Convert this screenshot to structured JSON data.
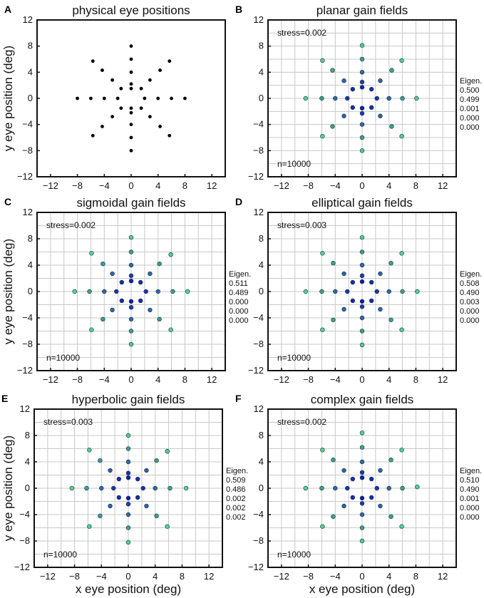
{
  "chart_data": [
    {
      "panel_label": "A",
      "type": "scatter",
      "title": "physical eye positions",
      "xlim": [
        -14,
        14
      ],
      "ylim": [
        -12,
        12
      ],
      "xticks": [
        -12,
        -8,
        -4,
        0,
        4,
        8,
        12
      ],
      "yticks": [
        -12,
        -8,
        -4,
        0,
        4,
        8,
        12
      ],
      "ylabel": "y eye position (deg)",
      "xlabel": "",
      "grid": false,
      "marker_color": "#000000",
      "points": [
        {
          "x": 0,
          "y": 8
        },
        {
          "x": 0,
          "y": 6
        },
        {
          "x": 0,
          "y": 4
        },
        {
          "x": 0,
          "y": 2.2
        },
        {
          "x": 0,
          "y": 1.5
        },
        {
          "x": 0,
          "y": -1.5
        },
        {
          "x": 0,
          "y": -2.2
        },
        {
          "x": 0,
          "y": -4
        },
        {
          "x": 0,
          "y": -6
        },
        {
          "x": 0,
          "y": -8
        },
        {
          "x": -8,
          "y": 0
        },
        {
          "x": -6,
          "y": 0
        },
        {
          "x": -4,
          "y": 0
        },
        {
          "x": -2,
          "y": 0
        },
        {
          "x": 2,
          "y": 0
        },
        {
          "x": 4,
          "y": 0
        },
        {
          "x": 6,
          "y": 0
        },
        {
          "x": 8,
          "y": 0
        },
        {
          "x": 1.5,
          "y": 1.5
        },
        {
          "x": 2.8,
          "y": 2.8
        },
        {
          "x": 4.3,
          "y": 4.3
        },
        {
          "x": 5.7,
          "y": 5.7
        },
        {
          "x": -1.5,
          "y": 1.5
        },
        {
          "x": -2.8,
          "y": 2.8
        },
        {
          "x": -4.3,
          "y": 4.3
        },
        {
          "x": -5.7,
          "y": 5.7
        },
        {
          "x": 1.5,
          "y": -1.5
        },
        {
          "x": 2.8,
          "y": -2.8
        },
        {
          "x": 4.3,
          "y": -4.3
        },
        {
          "x": 5.7,
          "y": -5.7
        },
        {
          "x": -1.5,
          "y": -1.5
        },
        {
          "x": -2.8,
          "y": -2.8
        },
        {
          "x": -4.3,
          "y": -4.3
        },
        {
          "x": -5.7,
          "y": -5.7
        }
      ]
    },
    {
      "panel_label": "B",
      "type": "scatter",
      "title": "planar gain fields",
      "xlim": [
        -14,
        14
      ],
      "ylim": [
        -12,
        12
      ],
      "xticks": [
        -12,
        -8,
        -4,
        0,
        4,
        8,
        12
      ],
      "yticks": [
        -12,
        -8,
        -4,
        0,
        4,
        8,
        12
      ],
      "xlabel": "",
      "ylabel": "",
      "grid": true,
      "stress": "stress=0.002",
      "n": "n=10000",
      "eigen_label": "Eigen.",
      "eigenvalues": [
        "0.500",
        "0.499",
        "0.001",
        "0.000",
        "0.000"
      ],
      "points": [
        {
          "x": 0,
          "y": 8.1
        },
        {
          "x": 0,
          "y": 6
        },
        {
          "x": 0,
          "y": 4
        },
        {
          "x": 0,
          "y": 2.5
        },
        {
          "x": 0,
          "y": 1.7
        },
        {
          "x": 0,
          "y": -1.5
        },
        {
          "x": 0,
          "y": -2.3
        },
        {
          "x": 0,
          "y": -4
        },
        {
          "x": 0,
          "y": -6
        },
        {
          "x": 0,
          "y": -8
        },
        {
          "x": -8.4,
          "y": 0
        },
        {
          "x": -6,
          "y": 0
        },
        {
          "x": -4,
          "y": 0
        },
        {
          "x": -2.2,
          "y": 0
        },
        {
          "x": 2.2,
          "y": 0
        },
        {
          "x": 4,
          "y": 0
        },
        {
          "x": 6,
          "y": 0
        },
        {
          "x": 8.1,
          "y": 0
        },
        {
          "x": 1.4,
          "y": 1.4
        },
        {
          "x": 2.7,
          "y": 2.7
        },
        {
          "x": 4.4,
          "y": 4.3
        },
        {
          "x": 5.9,
          "y": 5.8
        },
        {
          "x": -1.4,
          "y": 1.4
        },
        {
          "x": -2.7,
          "y": 2.7
        },
        {
          "x": -4.4,
          "y": 4.3
        },
        {
          "x": -5.9,
          "y": 5.8
        },
        {
          "x": 1.4,
          "y": -1.4
        },
        {
          "x": 2.7,
          "y": -2.7
        },
        {
          "x": 4.4,
          "y": -4.3
        },
        {
          "x": 5.9,
          "y": -5.8
        },
        {
          "x": -1.4,
          "y": -1.4
        },
        {
          "x": -2.7,
          "y": -2.7
        },
        {
          "x": -4.4,
          "y": -4.3
        },
        {
          "x": -5.9,
          "y": -5.8
        }
      ]
    },
    {
      "panel_label": "C",
      "type": "scatter",
      "title": "sigmoidal gain fields",
      "xlim": [
        -14,
        14
      ],
      "ylim": [
        -12,
        12
      ],
      "xticks": [
        -12,
        -8,
        -4,
        0,
        4,
        8,
        12
      ],
      "yticks": [
        -12,
        -8,
        -4,
        0,
        4,
        8,
        12
      ],
      "xlabel": "",
      "ylabel": "y eye position (deg)",
      "grid": true,
      "stress": "stress=0.002",
      "n": "n=10000",
      "eigen_label": "Eigen.",
      "eigenvalues": [
        "0.511",
        "0.489",
        "0.000",
        "0.000",
        "0.000"
      ],
      "points": [
        {
          "x": 0,
          "y": 8.2
        },
        {
          "x": 0,
          "y": 6
        },
        {
          "x": 0,
          "y": 4
        },
        {
          "x": 0,
          "y": 2.4
        },
        {
          "x": 0,
          "y": 1.6
        },
        {
          "x": 0,
          "y": -1.5
        },
        {
          "x": 0,
          "y": -2.4
        },
        {
          "x": 0,
          "y": -4.2
        },
        {
          "x": 0,
          "y": -6
        },
        {
          "x": 0,
          "y": -8
        },
        {
          "x": -8.4,
          "y": 0
        },
        {
          "x": -6.2,
          "y": 0
        },
        {
          "x": -4,
          "y": 0
        },
        {
          "x": -2.2,
          "y": 0
        },
        {
          "x": 2.2,
          "y": 0
        },
        {
          "x": 4,
          "y": 0
        },
        {
          "x": 6.2,
          "y": 0
        },
        {
          "x": 8.4,
          "y": 0
        },
        {
          "x": 1.4,
          "y": 1.4
        },
        {
          "x": 2.8,
          "y": 2.7
        },
        {
          "x": 4.2,
          "y": 4.2
        },
        {
          "x": 5.9,
          "y": 5.6
        },
        {
          "x": -1.4,
          "y": 1.4
        },
        {
          "x": -2.8,
          "y": 2.7
        },
        {
          "x": -4.2,
          "y": 4.2
        },
        {
          "x": -5.9,
          "y": 5.8
        },
        {
          "x": 1.4,
          "y": -1.4
        },
        {
          "x": 2.8,
          "y": -2.8
        },
        {
          "x": 4.2,
          "y": -4.2
        },
        {
          "x": 5.9,
          "y": -5.8
        },
        {
          "x": -1.4,
          "y": -1.4
        },
        {
          "x": -2.8,
          "y": -2.8
        },
        {
          "x": -4.2,
          "y": -4.2
        },
        {
          "x": -5.9,
          "y": -5.8
        }
      ]
    },
    {
      "panel_label": "D",
      "type": "scatter",
      "title": "elliptical gain fields",
      "xlim": [
        -14,
        14
      ],
      "ylim": [
        -12,
        12
      ],
      "xticks": [
        -12,
        -8,
        -4,
        0,
        4,
        8,
        12
      ],
      "yticks": [
        -12,
        -8,
        -4,
        0,
        4,
        8,
        12
      ],
      "xlabel": "",
      "ylabel": "",
      "grid": true,
      "stress": "stress=0.003",
      "n": "n=10000",
      "eigen_label": "Eigen.",
      "eigenvalues": [
        "0.508",
        "0.490",
        "0.003",
        "0.000",
        "0.000"
      ],
      "points": [
        {
          "x": 0,
          "y": 8.2
        },
        {
          "x": 0,
          "y": 6
        },
        {
          "x": 0,
          "y": 4
        },
        {
          "x": 0,
          "y": 2.4
        },
        {
          "x": 0,
          "y": 1.5
        },
        {
          "x": 0,
          "y": -1.5
        },
        {
          "x": 0,
          "y": -2.3
        },
        {
          "x": 0,
          "y": -4
        },
        {
          "x": 0,
          "y": -6
        },
        {
          "x": 0,
          "y": -8.1
        },
        {
          "x": -8.4,
          "y": 0
        },
        {
          "x": -6,
          "y": 0
        },
        {
          "x": -4,
          "y": 0
        },
        {
          "x": -2.2,
          "y": 0
        },
        {
          "x": 2.2,
          "y": 0
        },
        {
          "x": 4,
          "y": 0
        },
        {
          "x": 6,
          "y": 0
        },
        {
          "x": 8.2,
          "y": 0
        },
        {
          "x": 1.4,
          "y": 1.4
        },
        {
          "x": 2.7,
          "y": 2.7
        },
        {
          "x": 4.3,
          "y": 4.3
        },
        {
          "x": 5.9,
          "y": 5.8
        },
        {
          "x": -1.4,
          "y": 1.4
        },
        {
          "x": -2.7,
          "y": 2.7
        },
        {
          "x": -4.3,
          "y": 4.3
        },
        {
          "x": -5.9,
          "y": 5.8
        },
        {
          "x": 1.4,
          "y": -1.4
        },
        {
          "x": 2.7,
          "y": -2.7
        },
        {
          "x": 4.3,
          "y": -4.3
        },
        {
          "x": 5.9,
          "y": -5.8
        },
        {
          "x": -1.4,
          "y": -1.4
        },
        {
          "x": -2.7,
          "y": -2.7
        },
        {
          "x": -4.3,
          "y": -4.3
        },
        {
          "x": -5.9,
          "y": -5.8
        }
      ]
    },
    {
      "panel_label": "E",
      "type": "scatter",
      "title": "hyperbolic gain fields",
      "xlim": [
        -14,
        14
      ],
      "ylim": [
        -12,
        12
      ],
      "xticks": [
        -12,
        -8,
        -4,
        0,
        4,
        8,
        12
      ],
      "yticks": [
        -12,
        -8,
        -4,
        0,
        4,
        8,
        12
      ],
      "xlabel": "x eye position (deg)",
      "ylabel": "y eye position (deg)",
      "grid": true,
      "stress": "stress=0.003",
      "n": "n=10000",
      "eigen_label": "Eigen.",
      "eigenvalues": [
        "0.509",
        "0.486",
        "0.002",
        "0.002",
        "0.002"
      ],
      "points": [
        {
          "x": 0,
          "y": 8
        },
        {
          "x": 0,
          "y": 6
        },
        {
          "x": 0,
          "y": 4
        },
        {
          "x": 0,
          "y": 2.3
        },
        {
          "x": 0,
          "y": 1.6
        },
        {
          "x": 0,
          "y": -1.5
        },
        {
          "x": 0,
          "y": -2.4
        },
        {
          "x": 0,
          "y": -4
        },
        {
          "x": 0,
          "y": -6
        },
        {
          "x": 0,
          "y": -8.2
        },
        {
          "x": -8.4,
          "y": 0
        },
        {
          "x": -6.2,
          "y": 0
        },
        {
          "x": -4,
          "y": 0
        },
        {
          "x": -2.2,
          "y": 0
        },
        {
          "x": 2.2,
          "y": 0
        },
        {
          "x": 4,
          "y": 0
        },
        {
          "x": 6.2,
          "y": 0
        },
        {
          "x": 8.6,
          "y": 0
        },
        {
          "x": 1.4,
          "y": 1.4
        },
        {
          "x": 2.7,
          "y": 2.7
        },
        {
          "x": 4.2,
          "y": 4.2
        },
        {
          "x": 5.8,
          "y": 5.6
        },
        {
          "x": -1.4,
          "y": 1.4
        },
        {
          "x": -2.7,
          "y": 2.7
        },
        {
          "x": -4.2,
          "y": 4.2
        },
        {
          "x": -5.8,
          "y": 5.8
        },
        {
          "x": 1.4,
          "y": -1.4
        },
        {
          "x": 2.7,
          "y": -2.7
        },
        {
          "x": 4.2,
          "y": -4.2
        },
        {
          "x": 5.8,
          "y": -5.8
        },
        {
          "x": -1.4,
          "y": -1.4
        },
        {
          "x": -2.7,
          "y": -2.7
        },
        {
          "x": -4.2,
          "y": -4.2
        },
        {
          "x": -5.8,
          "y": -5.8
        }
      ]
    },
    {
      "panel_label": "F",
      "type": "scatter",
      "title": "complex gain fields",
      "xlim": [
        -14,
        14
      ],
      "ylim": [
        -12,
        12
      ],
      "xticks": [
        -12,
        -8,
        -4,
        0,
        4,
        8,
        12
      ],
      "yticks": [
        -12,
        -8,
        -4,
        0,
        4,
        8,
        12
      ],
      "xlabel": "x eye position (deg)",
      "ylabel": "",
      "grid": true,
      "stress": "stress=0.002",
      "n": "n=10000",
      "eigen_label": "Eigen.",
      "eigenvalues": [
        "0.510",
        "0.490",
        "0.001",
        "0.000",
        "0.000"
      ],
      "points": [
        {
          "x": 0,
          "y": 8.4
        },
        {
          "x": 0,
          "y": 6.2
        },
        {
          "x": 0,
          "y": 4
        },
        {
          "x": 0,
          "y": 2.4
        },
        {
          "x": 0,
          "y": 1.6
        },
        {
          "x": 0,
          "y": -1.5
        },
        {
          "x": 0,
          "y": -2.3
        },
        {
          "x": 0,
          "y": -4
        },
        {
          "x": 0,
          "y": -6
        },
        {
          "x": 0,
          "y": -8
        },
        {
          "x": -8.4,
          "y": 0
        },
        {
          "x": -6,
          "y": 0
        },
        {
          "x": -4,
          "y": 0
        },
        {
          "x": -2.2,
          "y": 0
        },
        {
          "x": 2.2,
          "y": 0
        },
        {
          "x": 4,
          "y": 0
        },
        {
          "x": 6,
          "y": 0
        },
        {
          "x": 8.2,
          "y": 0.2
        },
        {
          "x": 1.4,
          "y": 1.4
        },
        {
          "x": 2.7,
          "y": 2.7
        },
        {
          "x": 4.3,
          "y": 4.3
        },
        {
          "x": 5.9,
          "y": 5.8
        },
        {
          "x": -1.4,
          "y": 1.4
        },
        {
          "x": -2.7,
          "y": 2.7
        },
        {
          "x": -4.3,
          "y": 4.3
        },
        {
          "x": -5.9,
          "y": 5.8
        },
        {
          "x": 1.4,
          "y": -1.4
        },
        {
          "x": 2.7,
          "y": -2.7
        },
        {
          "x": 4.3,
          "y": -4.3
        },
        {
          "x": 5.9,
          "y": -5.8
        },
        {
          "x": -1.4,
          "y": -1.4
        },
        {
          "x": -2.7,
          "y": -2.7
        },
        {
          "x": -4.3,
          "y": -4.3
        },
        {
          "x": -5.9,
          "y": -5.8
        }
      ]
    }
  ]
}
